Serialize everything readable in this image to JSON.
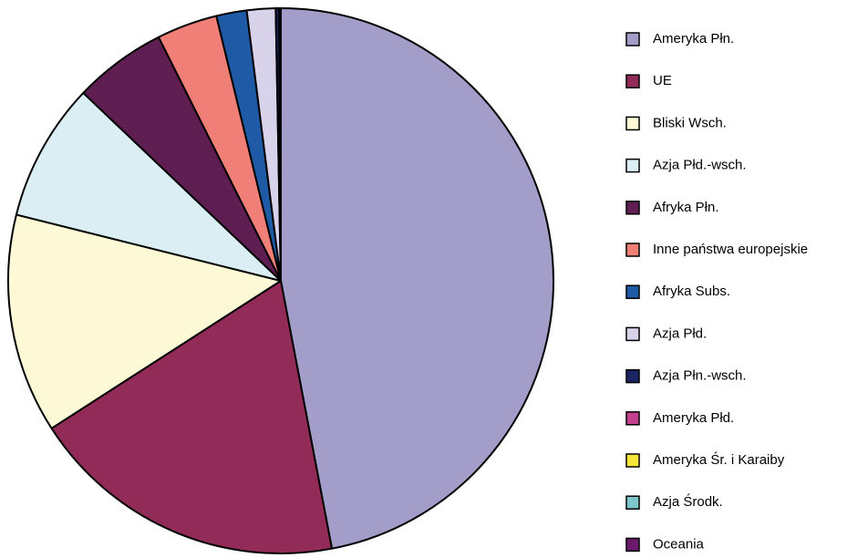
{
  "chart_data": {
    "type": "pie",
    "categories": [
      "Ameryka Płn.",
      "UE",
      "Bliski Wsch.",
      "Azja Płd.-wsch.",
      "Afryka Płn.",
      "Inne państwa europejskie",
      "Afryka Subs.",
      "Azja Płd.",
      "Azja Płn.-wsch.",
      "Ameryka Płd.",
      "Ameryka Śr. i Karaiby",
      "Azja Środk.",
      "Oceania"
    ],
    "values": [
      47,
      18.9,
      13,
      8.2,
      5.5,
      3.6,
      1.8,
      1.7,
      0.2,
      0.05,
      0.03,
      0.01,
      0.01
    ],
    "colors": [
      "#a29dc9",
      "#922b57",
      "#fdf8d6",
      "#dbeef3",
      "#5e1e52",
      "#f07f78",
      "#1e5aa5",
      "#d8d3ea",
      "#1b2462",
      "#c2408f",
      "#f5e63a",
      "#7fc5cc",
      "#6b1a6b"
    ],
    "legend": "right"
  }
}
